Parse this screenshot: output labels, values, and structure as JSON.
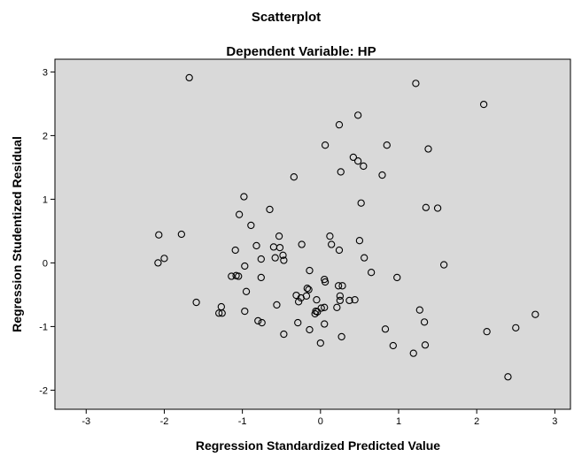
{
  "chart_data": {
    "type": "scatter",
    "title": "Scatterplot",
    "subtitle": "Dependent Variable: HP",
    "xlabel": "Regression Standardized Predicted Value",
    "ylabel": "Regression Studentized Residual",
    "xlim": [
      -3.4,
      3.2
    ],
    "ylim": [
      -2.3,
      3.2
    ],
    "xticks": [
      -3,
      -2,
      -1,
      0,
      1,
      2,
      3
    ],
    "yticks": [
      -2,
      -1,
      0,
      1,
      2,
      3
    ],
    "xtick_labels": [
      "-3",
      "-2",
      "-1",
      "0",
      "1",
      "2",
      "3"
    ],
    "ytick_labels": [
      "-2",
      "-1",
      "0",
      "1",
      "2",
      "3"
    ],
    "grid": false,
    "plot_background": "#d9d9d9",
    "marker_color": "#000000",
    "marker_style": "hollow-circle",
    "points": [
      {
        "x": -1.68,
        "y": 2.91
      },
      {
        "x": 1.22,
        "y": 2.82
      },
      {
        "x": 2.09,
        "y": 2.49
      },
      {
        "x": 0.48,
        "y": 2.32
      },
      {
        "x": 0.24,
        "y": 2.17
      },
      {
        "x": 0.06,
        "y": 1.85
      },
      {
        "x": 0.85,
        "y": 1.85
      },
      {
        "x": 1.38,
        "y": 1.79
      },
      {
        "x": 0.42,
        "y": 1.66
      },
      {
        "x": 0.48,
        "y": 1.6
      },
      {
        "x": 0.55,
        "y": 1.52
      },
      {
        "x": 0.26,
        "y": 1.43
      },
      {
        "x": 0.79,
        "y": 1.38
      },
      {
        "x": -0.34,
        "y": 1.35
      },
      {
        "x": -0.98,
        "y": 1.04
      },
      {
        "x": 0.52,
        "y": 0.94
      },
      {
        "x": 1.35,
        "y": 0.87
      },
      {
        "x": 1.5,
        "y": 0.86
      },
      {
        "x": -0.65,
        "y": 0.84
      },
      {
        "x": -1.04,
        "y": 0.76
      },
      {
        "x": -0.89,
        "y": 0.59
      },
      {
        "x": -2.07,
        "y": 0.44
      },
      {
        "x": -1.78,
        "y": 0.45
      },
      {
        "x": -0.53,
        "y": 0.42
      },
      {
        "x": 0.12,
        "y": 0.42
      },
      {
        "x": 0.5,
        "y": 0.35
      },
      {
        "x": -0.24,
        "y": 0.29
      },
      {
        "x": -0.82,
        "y": 0.27
      },
      {
        "x": -0.6,
        "y": 0.25
      },
      {
        "x": -0.52,
        "y": 0.24
      },
      {
        "x": 0.14,
        "y": 0.29
      },
      {
        "x": 0.24,
        "y": 0.2
      },
      {
        "x": -1.09,
        "y": 0.2
      },
      {
        "x": -0.48,
        "y": 0.12
      },
      {
        "x": -0.58,
        "y": 0.08
      },
      {
        "x": -0.76,
        "y": 0.06
      },
      {
        "x": -0.47,
        "y": 0.04
      },
      {
        "x": -2.0,
        "y": 0.07
      },
      {
        "x": -2.08,
        "y": 0.0
      },
      {
        "x": 0.56,
        "y": 0.08
      },
      {
        "x": 1.58,
        "y": -0.03
      },
      {
        "x": -0.97,
        "y": -0.05
      },
      {
        "x": -0.14,
        "y": -0.12
      },
      {
        "x": 0.65,
        "y": -0.15
      },
      {
        "x": -1.14,
        "y": -0.21
      },
      {
        "x": -1.08,
        "y": -0.2
      },
      {
        "x": -1.05,
        "y": -0.21
      },
      {
        "x": -0.76,
        "y": -0.23
      },
      {
        "x": 0.05,
        "y": -0.26
      },
      {
        "x": 0.06,
        "y": -0.3
      },
      {
        "x": 0.98,
        "y": -0.23
      },
      {
        "x": 0.23,
        "y": -0.36
      },
      {
        "x": 0.28,
        "y": -0.36
      },
      {
        "x": -0.17,
        "y": -0.4
      },
      {
        "x": -0.15,
        "y": -0.42
      },
      {
        "x": -0.95,
        "y": -0.45
      },
      {
        "x": -0.31,
        "y": -0.51
      },
      {
        "x": -0.25,
        "y": -0.55
      },
      {
        "x": -0.18,
        "y": -0.52
      },
      {
        "x": -0.28,
        "y": -0.61
      },
      {
        "x": 0.25,
        "y": -0.52
      },
      {
        "x": 0.25,
        "y": -0.59
      },
      {
        "x": -0.05,
        "y": -0.58
      },
      {
        "x": 0.37,
        "y": -0.59
      },
      {
        "x": 0.44,
        "y": -0.58
      },
      {
        "x": -1.59,
        "y": -0.62
      },
      {
        "x": -0.56,
        "y": -0.66
      },
      {
        "x": 0.05,
        "y": -0.7
      },
      {
        "x": 0.01,
        "y": -0.71
      },
      {
        "x": 0.21,
        "y": -0.7
      },
      {
        "x": -1.27,
        "y": -0.69
      },
      {
        "x": -0.06,
        "y": -0.76
      },
      {
        "x": -0.07,
        "y": -0.8
      },
      {
        "x": -1.3,
        "y": -0.79
      },
      {
        "x": -1.26,
        "y": -0.79
      },
      {
        "x": -0.97,
        "y": -0.76
      },
      {
        "x": -0.04,
        "y": -0.77
      },
      {
        "x": 1.27,
        "y": -0.74
      },
      {
        "x": 2.75,
        "y": -0.81
      },
      {
        "x": -0.8,
        "y": -0.91
      },
      {
        "x": -0.75,
        "y": -0.94
      },
      {
        "x": -0.29,
        "y": -0.94
      },
      {
        "x": 0.05,
        "y": -0.96
      },
      {
        "x": 1.33,
        "y": -0.93
      },
      {
        "x": -0.14,
        "y": -1.05
      },
      {
        "x": 0.83,
        "y": -1.04
      },
      {
        "x": 2.5,
        "y": -1.02
      },
      {
        "x": 2.13,
        "y": -1.08
      },
      {
        "x": -0.47,
        "y": -1.12
      },
      {
        "x": 0.27,
        "y": -1.16
      },
      {
        "x": 0.0,
        "y": -1.26
      },
      {
        "x": 0.93,
        "y": -1.3
      },
      {
        "x": 1.34,
        "y": -1.29
      },
      {
        "x": 1.19,
        "y": -1.42
      },
      {
        "x": 2.4,
        "y": -1.79
      }
    ]
  }
}
